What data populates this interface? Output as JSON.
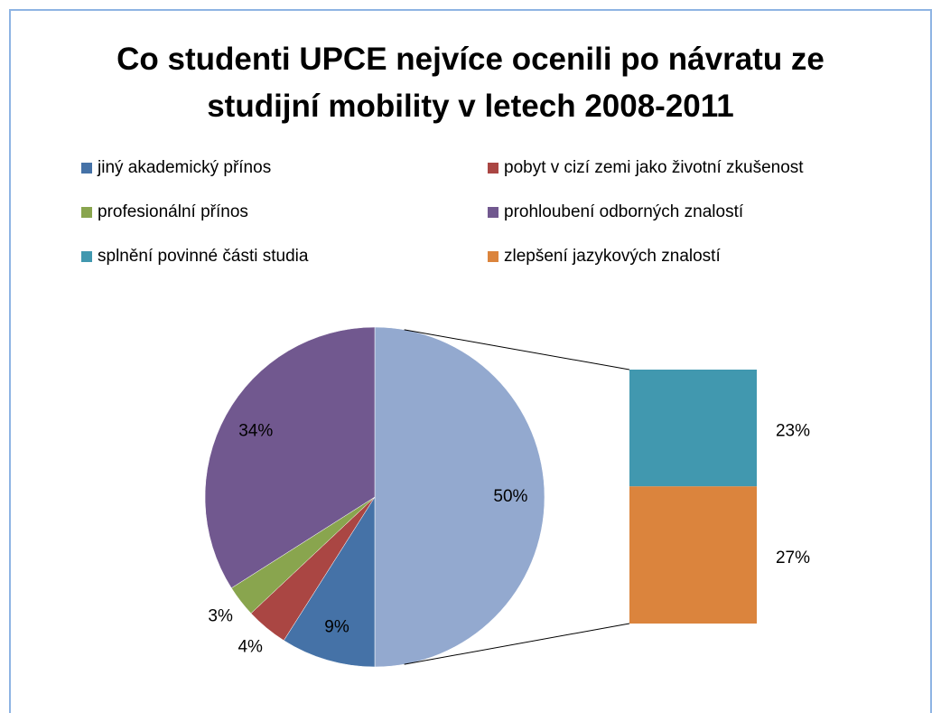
{
  "chart_data": {
    "type": "pie-of-bar",
    "title": "Co studenti UPCE nejvíce ocenili po návratu ze studijní mobility v letech 2008-2011",
    "series": [
      {
        "name": "jiný akademický přínos",
        "color": "#4572a7",
        "value": 9,
        "value_label": "9%",
        "part": "pie"
      },
      {
        "name": "pobyt v cizí zemi jako životní zkušenost",
        "color": "#aa4643",
        "value": 4,
        "value_label": "4%",
        "part": "pie"
      },
      {
        "name": "profesionální přínos",
        "color": "#89a54e",
        "value": 3,
        "value_label": "3%",
        "part": "pie"
      },
      {
        "name": "prohloubení odborných znalostí",
        "color": "#71588f",
        "value": 34,
        "value_label": "34%",
        "part": "pie"
      },
      {
        "name": "splnění povinné části studia",
        "color": "#4198af",
        "value": 23,
        "value_label": "23%",
        "part": "bar"
      },
      {
        "name": "zlepšení jazykových znalostí",
        "color": "#db843d",
        "value": 27,
        "value_label": "27%",
        "part": "bar"
      }
    ],
    "other": {
      "value": 50,
      "value_label": "50%",
      "color": "#93a9cf"
    },
    "legend": "top"
  }
}
